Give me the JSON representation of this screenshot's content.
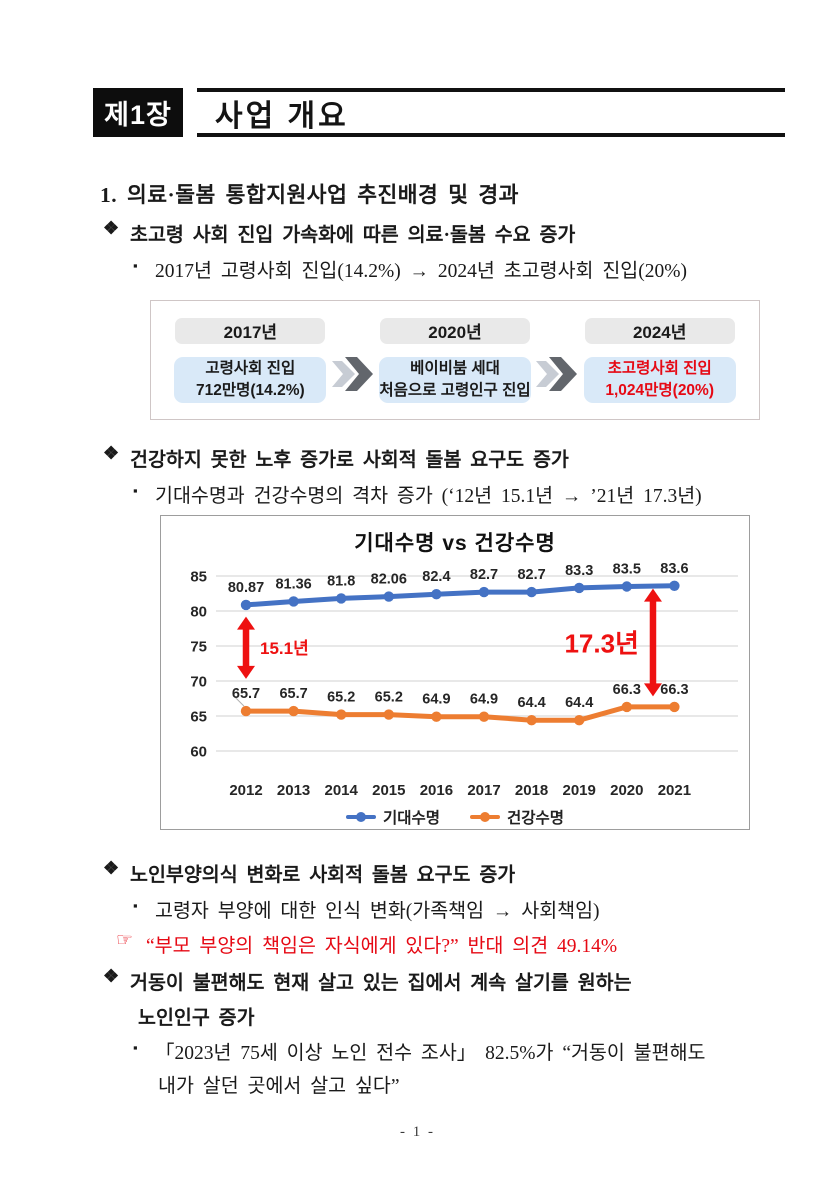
{
  "page": {
    "footer": "- 1 -"
  },
  "header": {
    "chapter": "제1장",
    "title": "사업 개요"
  },
  "section_heading": "1. 의료·돌봄 통합지원사업 추진배경 및 경과",
  "items": {
    "demand": {
      "marker": "❖",
      "title": "초고령 사회 진입 가속화에 따른 의료·돌봄 수요 증가",
      "sub_marker": "▪",
      "sub": "2017년 고령사회 진입(14.2%) → 2024년 초고령사회 진입(20%)"
    },
    "health": {
      "marker": "❖",
      "title": "건강하지 못한 노후 증가로 사회적 돌봄 요구도 증가",
      "sub_marker": "▪",
      "sub": "기대수명과 건강수명의 격차 증가 (‘12년 15.1년 → ’21년 17.3년)"
    },
    "awareness": {
      "marker": "❖",
      "title": "노인부양의식 변화로 사회적 돌봄 요구도 증가",
      "sub_marker": "▪",
      "sub": "고령자 부양에 대한 인식 변화(가족책임 → 사회책임)",
      "note_marker": "☞",
      "note": "“부모 부양의 책임은 자식에게 있다?” 반대 의견 49.14%",
      "note_color": "#e60914"
    },
    "aging_in_place": {
      "marker": "❖",
      "title_line1": "거동이 불편해도 현재 살고 있는 집에서 계속 살기를 원하는",
      "title_line2": "노인인구 증가",
      "sub_marker": "▪",
      "sub_line1": "「2023년 75세 이상 노인 전수 조사」 82.5%가 “거동이 불편해도",
      "sub_line2": "내가 살던 곳에서 살고 싶다”"
    }
  },
  "timeline": {
    "year_bg": "#e9e9e9",
    "desc_bg": "#d9e9f8",
    "separator_icon": "chevron-right-icon",
    "separator_colors": {
      "back": "#c7ccd4",
      "front": "#62666c"
    },
    "steps": [
      {
        "year": "2017년",
        "line1": "고령사회 진입",
        "line2": "712만명(14.2%)",
        "text_color": "#1a1a1a"
      },
      {
        "year": "2020년",
        "line1": "베이비붐 세대",
        "line2": "처음으로 고령인구 진입",
        "text_color": "#1a1a1a"
      },
      {
        "year": "2024년",
        "line1": "초고령사회 진입",
        "line2": "1,024만명(20%)",
        "text_color": "#e60914"
      }
    ]
  },
  "chart_data": {
    "type": "line",
    "title": "기대수명 vs 건강수명",
    "x": [
      "2012",
      "2013",
      "2014",
      "2015",
      "2016",
      "2017",
      "2018",
      "2019",
      "2020",
      "2021"
    ],
    "yticks": [
      60,
      65,
      70,
      75,
      80,
      85
    ],
    "ylim": [
      57.5,
      87.5
    ],
    "grid": true,
    "legend_position": "bottom",
    "series": [
      {
        "name": "기대수명",
        "color": "#4472c4",
        "values": [
          80.87,
          81.36,
          81.8,
          82.06,
          82.4,
          82.7,
          82.7,
          83.3,
          83.5,
          83.6
        ]
      },
      {
        "name": "건강수명",
        "color": "#ed7d31",
        "values": [
          65.7,
          65.7,
          65.2,
          65.2,
          64.9,
          64.9,
          64.4,
          64.4,
          66.3,
          66.3
        ]
      }
    ],
    "annotations": [
      {
        "label": "15.1년",
        "color": "#ee1111",
        "x_index": 0,
        "value_from": 79.2,
        "value_to": 70.3,
        "label_side": "right",
        "font_size": 17
      },
      {
        "label": "17.3년",
        "color": "#ee1111",
        "x_index": 8.55,
        "value_from": 83.2,
        "value_to": 67.8,
        "label_side": "left",
        "font_size": 26
      }
    ]
  }
}
